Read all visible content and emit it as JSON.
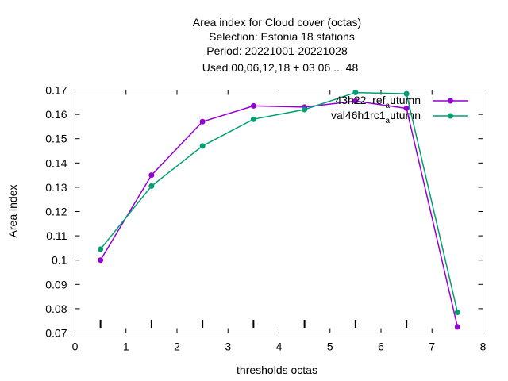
{
  "chart_data": {
    "type": "line",
    "title_lines": [
      "Area index  for Cloud cover (octas)",
      "Selection: Estonia      18 stations",
      "Period: 20221001-20221028",
      "Used  00,06,12,18  + 03 06 ... 48"
    ],
    "xlabel": "thresholds octas",
    "ylabel": "Area index",
    "xlim": [
      0,
      8
    ],
    "ylim": [
      0.07,
      0.17
    ],
    "xticks": [
      "0",
      "1",
      "2",
      "3",
      "4",
      "5",
      "6",
      "7",
      "8"
    ],
    "yticks": [
      "0.07",
      "0.08",
      "0.09",
      "0.1",
      "0.11",
      "0.12",
      "0.13",
      "0.14",
      "0.15",
      "0.16",
      "0.17"
    ],
    "threshold_marks": [
      0.5,
      1.5,
      2.5,
      3.5,
      4.5,
      5.5,
      6.5
    ],
    "grid": false,
    "legend_position": "top-right",
    "series": [
      {
        "name": "43h22_ref_autumn",
        "legend_main": "43h22_ref",
        "legend_sub": "a",
        "legend_tail": "utumn",
        "color": "#9400d3",
        "x": [
          0.5,
          1.5,
          2.5,
          3.5,
          4.5,
          5.5,
          6.5,
          7.5
        ],
        "values": [
          0.1,
          0.135,
          0.157,
          0.1635,
          0.163,
          0.1655,
          0.1625,
          0.0725
        ]
      },
      {
        "name": "val46h1rc1_autumn",
        "legend_main": "val46h1rc1",
        "legend_sub": "a",
        "legend_tail": "utumn",
        "color": "#009e73",
        "x": [
          0.5,
          1.5,
          2.5,
          3.5,
          4.5,
          5.5,
          6.5,
          7.5
        ],
        "values": [
          0.1045,
          0.1305,
          0.147,
          0.158,
          0.162,
          0.169,
          0.1685,
          0.0785
        ]
      }
    ]
  }
}
